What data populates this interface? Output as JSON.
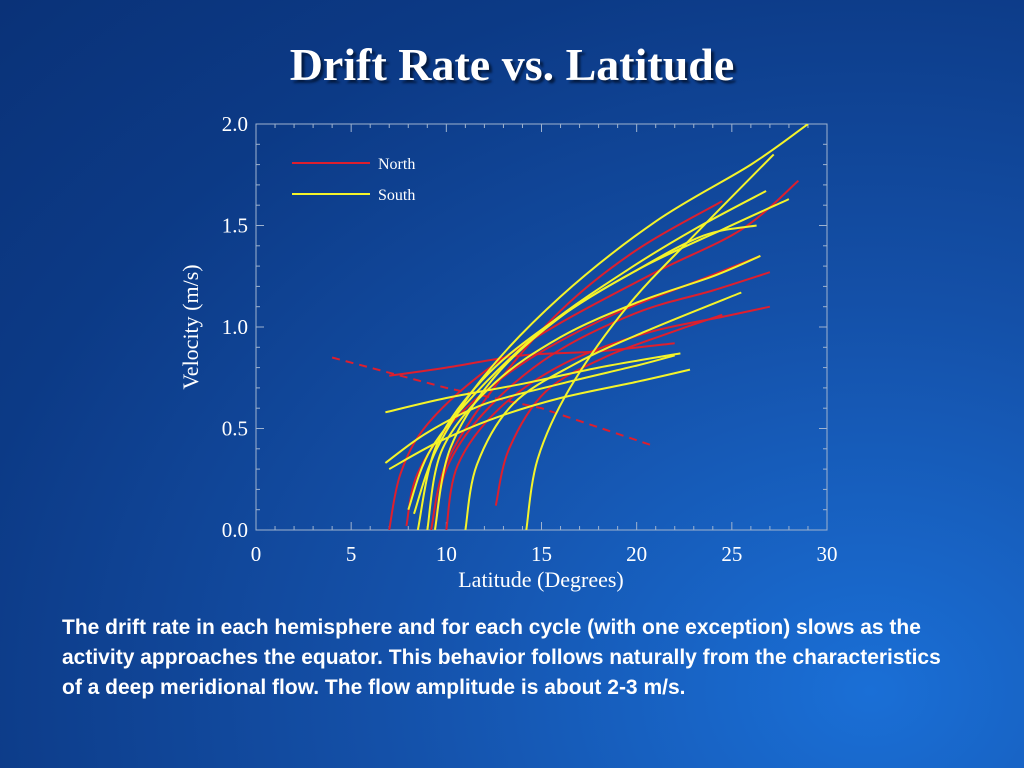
{
  "slide": {
    "title": "Drift Rate vs. Latitude",
    "caption": "The drift rate in each hemisphere and for each cycle (with one exception) slows as the activity approaches the equator. This behavior follows naturally from the characteristics of a deep meridional flow. The flow amplitude is about 2-3 m/s."
  },
  "colors": {
    "north": "#dd1f2e",
    "south": "#f4f42a",
    "frame": "#9fb3cf"
  },
  "chart_data": {
    "type": "line",
    "title": "",
    "xlabel": "Latitude (Degrees)",
    "ylabel": "Velocity (m/s)",
    "xlim": [
      0,
      30
    ],
    "ylim": [
      0,
      2
    ],
    "xticks": [
      "0",
      "5",
      "10",
      "15",
      "20",
      "25",
      "30"
    ],
    "yticks": [
      "0.0",
      "0.5",
      "1.0",
      "1.5",
      "2.0"
    ],
    "legend": {
      "position": "top-left",
      "entries": [
        {
          "name": "North",
          "color": "#dd1f2e"
        },
        {
          "name": "South",
          "color": "#f4f42a"
        }
      ]
    },
    "series": [
      {
        "name": "North",
        "color": "#dd1f2e",
        "dashed": false,
        "points": [
          [
            7.0,
            0.0
          ],
          [
            7.6,
            0.28
          ],
          [
            9.0,
            0.52
          ],
          [
            12.0,
            0.78
          ],
          [
            16.0,
            1.02
          ],
          [
            21.0,
            1.27
          ],
          [
            25.5,
            1.48
          ],
          [
            28.5,
            1.72
          ]
        ]
      },
      {
        "name": "North",
        "color": "#dd1f2e",
        "dashed": false,
        "points": [
          [
            7.9,
            0.02
          ],
          [
            8.5,
            0.28
          ],
          [
            10.5,
            0.55
          ],
          [
            14.0,
            0.82
          ],
          [
            18.5,
            1.05
          ],
          [
            23.0,
            1.22
          ],
          [
            26.5,
            1.35
          ]
        ]
      },
      {
        "name": "North",
        "color": "#dd1f2e",
        "dashed": false,
        "points": [
          [
            9.4,
            0.0
          ],
          [
            10.0,
            0.3
          ],
          [
            12.0,
            0.58
          ],
          [
            15.5,
            0.86
          ],
          [
            20.0,
            1.07
          ],
          [
            24.0,
            1.18
          ],
          [
            27.0,
            1.27
          ]
        ]
      },
      {
        "name": "North",
        "color": "#dd1f2e",
        "dashed": false,
        "points": [
          [
            10.0,
            0.0
          ],
          [
            10.6,
            0.32
          ],
          [
            12.8,
            0.6
          ],
          [
            16.2,
            0.82
          ],
          [
            20.5,
            0.97
          ],
          [
            24.5,
            1.05
          ],
          [
            27.0,
            1.1
          ]
        ]
      },
      {
        "name": "North",
        "color": "#dd1f2e",
        "dashed": false,
        "points": [
          [
            12.6,
            0.12
          ],
          [
            13.3,
            0.4
          ],
          [
            15.2,
            0.68
          ],
          [
            18.3,
            0.85
          ],
          [
            22.0,
            0.98
          ],
          [
            24.5,
            1.06
          ]
        ]
      },
      {
        "name": "North",
        "color": "#dd1f2e",
        "dashed": false,
        "points": [
          [
            9.2,
            0.0
          ],
          [
            10.0,
            0.33
          ],
          [
            12.5,
            0.7
          ],
          [
            16.0,
            1.08
          ],
          [
            20.0,
            1.38
          ],
          [
            24.5,
            1.62
          ]
        ]
      },
      {
        "name": "North",
        "color": "#dd1f2e",
        "dashed": false,
        "points": [
          [
            7.0,
            0.76
          ],
          [
            10.0,
            0.8
          ],
          [
            14.0,
            0.86
          ],
          [
            18.0,
            0.88
          ],
          [
            22.0,
            0.92
          ]
        ]
      },
      {
        "name": "North",
        "color": "#dd1f2e",
        "dashed": true,
        "points": [
          [
            4.0,
            0.85
          ],
          [
            10.0,
            0.7
          ],
          [
            15.0,
            0.6
          ],
          [
            20.7,
            0.42
          ]
        ]
      },
      {
        "name": "South",
        "color": "#f4f42a",
        "dashed": false,
        "points": [
          [
            8.3,
            0.08
          ],
          [
            9.5,
            0.4
          ],
          [
            12.0,
            0.76
          ],
          [
            16.0,
            1.15
          ],
          [
            21.0,
            1.52
          ],
          [
            26.0,
            1.8
          ],
          [
            29.0,
            2.0
          ]
        ]
      },
      {
        "name": "South",
        "color": "#f4f42a",
        "dashed": false,
        "points": [
          [
            14.2,
            0.0
          ],
          [
            14.8,
            0.35
          ],
          [
            16.5,
            0.7
          ],
          [
            19.5,
            1.1
          ],
          [
            23.0,
            1.45
          ],
          [
            27.2,
            1.85
          ]
        ]
      },
      {
        "name": "South",
        "color": "#f4f42a",
        "dashed": false,
        "points": [
          [
            8.5,
            0.0
          ],
          [
            9.5,
            0.42
          ],
          [
            12.0,
            0.75
          ],
          [
            15.5,
            1.02
          ],
          [
            20.0,
            1.28
          ],
          [
            24.5,
            1.48
          ],
          [
            28.0,
            1.63
          ]
        ]
      },
      {
        "name": "South",
        "color": "#f4f42a",
        "dashed": false,
        "points": [
          [
            9.0,
            0.0
          ],
          [
            9.8,
            0.4
          ],
          [
            12.5,
            0.72
          ],
          [
            16.0,
            0.95
          ],
          [
            20.0,
            1.12
          ],
          [
            24.0,
            1.25
          ],
          [
            26.5,
            1.35
          ]
        ]
      },
      {
        "name": "South",
        "color": "#f4f42a",
        "dashed": false,
        "points": [
          [
            11.0,
            0.0
          ],
          [
            11.6,
            0.32
          ],
          [
            13.5,
            0.62
          ],
          [
            16.8,
            0.82
          ],
          [
            20.5,
            0.98
          ],
          [
            25.5,
            1.17
          ]
        ]
      },
      {
        "name": "South",
        "color": "#f4f42a",
        "dashed": false,
        "points": [
          [
            9.4,
            0.0
          ],
          [
            10.2,
            0.4
          ],
          [
            12.5,
            0.75
          ],
          [
            16.0,
            1.05
          ],
          [
            20.0,
            1.28
          ],
          [
            23.5,
            1.45
          ],
          [
            26.3,
            1.5
          ]
        ]
      },
      {
        "name": "South",
        "color": "#f4f42a",
        "dashed": false,
        "points": [
          [
            6.8,
            0.58
          ],
          [
            10.0,
            0.65
          ],
          [
            14.0,
            0.72
          ],
          [
            18.0,
            0.8
          ],
          [
            22.3,
            0.87
          ]
        ]
      },
      {
        "name": "South",
        "color": "#f4f42a",
        "dashed": false,
        "points": [
          [
            6.8,
            0.33
          ],
          [
            9.0,
            0.48
          ],
          [
            12.0,
            0.62
          ],
          [
            16.0,
            0.72
          ],
          [
            20.0,
            0.81
          ],
          [
            22.0,
            0.86
          ]
        ]
      },
      {
        "name": "South",
        "color": "#f4f42a",
        "dashed": false,
        "points": [
          [
            7.0,
            0.3
          ],
          [
            9.5,
            0.43
          ],
          [
            12.5,
            0.55
          ],
          [
            16.0,
            0.65
          ],
          [
            20.0,
            0.73
          ],
          [
            22.8,
            0.79
          ]
        ]
      },
      {
        "name": "South",
        "color": "#f4f42a",
        "dashed": false,
        "points": [
          [
            8.0,
            0.1
          ],
          [
            9.2,
            0.4
          ],
          [
            12.0,
            0.72
          ],
          [
            15.5,
            1.02
          ],
          [
            19.5,
            1.28
          ],
          [
            23.0,
            1.48
          ],
          [
            26.8,
            1.67
          ]
        ]
      }
    ]
  }
}
